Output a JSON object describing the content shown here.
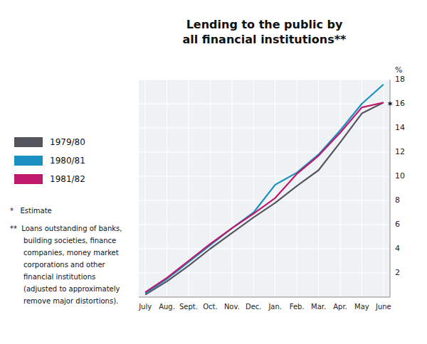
{
  "chart_data": {
    "type": "line",
    "title": "Lending to the public by\nall financial institutions**",
    "y_label": "%",
    "categories": [
      "July",
      "Aug.",
      "Sept.",
      "Oct.",
      "Nov.",
      "Dec.",
      "Jan.",
      "Feb.",
      "Mar.",
      "Apr.",
      "May",
      "June"
    ],
    "series": [
      {
        "name": "1979/80",
        "color": "#555560",
        "values": [
          0.2,
          1.3,
          2.6,
          4.0,
          5.3,
          6.6,
          7.8,
          9.2,
          10.5,
          12.8,
          15.2,
          16.1
        ]
      },
      {
        "name": "1980/81",
        "color": "#1a8fc1",
        "values": [
          0.3,
          1.5,
          2.9,
          4.3,
          5.7,
          7.0,
          9.3,
          10.3,
          11.8,
          13.8,
          16.0,
          17.6
        ]
      },
      {
        "name": "1981/82",
        "color": "#c0186a",
        "values": [
          0.4,
          1.6,
          3.0,
          4.4,
          5.7,
          6.9,
          8.2,
          10.2,
          11.7,
          13.6,
          15.7,
          16.1
        ]
      }
    ],
    "ylim": [
      0,
      18
    ],
    "yticks": [
      2,
      4,
      6,
      8,
      10,
      12,
      14,
      16,
      18
    ],
    "grid": true,
    "legend": "left",
    "annotations": [
      "*"
    ],
    "footnotes": [
      "*   Estimate",
      "**  Loans outstanding of banks,",
      "      building societies, finance",
      "      companies, money market",
      "      corporations and other",
      "      financial institutions",
      "      (adjusted to approximately",
      "      remove major distortions)."
    ]
  }
}
